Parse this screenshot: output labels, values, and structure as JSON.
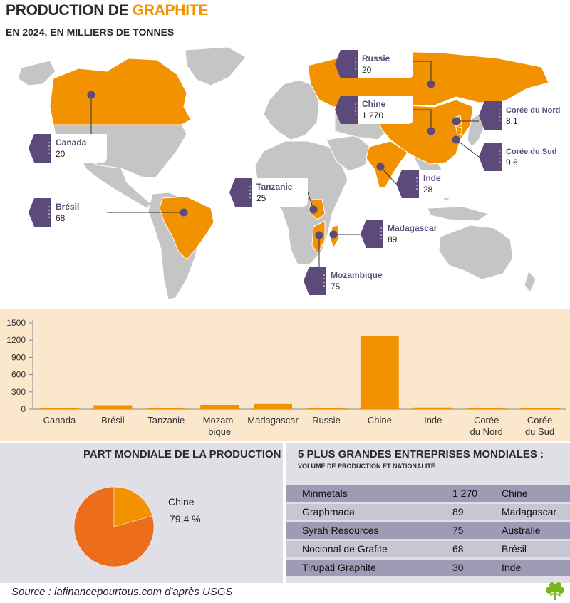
{
  "header": {
    "title_part1": "PRODUCTION DE ",
    "title_part2": "GRAPHITE",
    "subtitle": "EN 2024, EN MILLIERS DE TONNES"
  },
  "colors": {
    "accent": "#f39200",
    "highlight_country": "#f39200",
    "land": "#c5c5c5",
    "callout": "#5b4a7a",
    "bar_panel": "#fbe7cc",
    "pie_main": "#ec6e1d",
    "pie_other": "#f39200"
  },
  "map_callouts": [
    {
      "country": "Russie",
      "value": "20"
    },
    {
      "country": "Chine",
      "value": "1 270"
    },
    {
      "country": "Corée du Nord",
      "value": "8,1"
    },
    {
      "country": "Corée du Sud",
      "value": "9,6"
    },
    {
      "country": "Canada",
      "value": "20"
    },
    {
      "country": "Inde",
      "value": "28"
    },
    {
      "country": "Tanzanie",
      "value": "25"
    },
    {
      "country": "Brésil",
      "value": "68"
    },
    {
      "country": "Madagascar",
      "value": "89"
    },
    {
      "country": "Mozambique",
      "value": "75"
    }
  ],
  "chart_data": [
    {
      "type": "bar",
      "categories": [
        "Canada",
        "Brésil",
        "Tanzanie",
        "Mozam-bique",
        "Madagascar",
        "Russie",
        "Chine",
        "Inde",
        "Corée du Nord",
        "Corée du Sud"
      ],
      "category_lines": [
        [
          "Canada"
        ],
        [
          "Brésil"
        ],
        [
          "Tanzanie"
        ],
        [
          "Mozam-",
          "bique"
        ],
        [
          "Madagascar"
        ],
        [
          "Russie"
        ],
        [
          "Chine"
        ],
        [
          "Inde"
        ],
        [
          "Corée",
          "du Nord"
        ],
        [
          "Corée",
          "du Sud"
        ]
      ],
      "values": [
        20,
        68,
        25,
        75,
        89,
        20,
        1270,
        28,
        8.1,
        9.6
      ],
      "ylim": [
        0,
        1500
      ],
      "yticks": [
        0,
        300,
        600,
        900,
        1200,
        1500
      ],
      "title": "",
      "xlabel": "",
      "ylabel": "",
      "grid": false
    },
    {
      "type": "pie",
      "title": "PART MONDIALE DE LA PRODUCTION",
      "slices": [
        {
          "label": "Chine",
          "value": 79.4
        },
        {
          "label": "",
          "value": 20.6
        }
      ],
      "label_text": "Chine",
      "value_text": "79,4 %"
    }
  ],
  "enterprises": {
    "title": "5 PLUS GRANDES ENTREPRISES MONDIALES :",
    "subtitle": "VOLUME DE PRODUCTION ET NATIONALITÉ",
    "rows": [
      {
        "name": "Minmetals",
        "volume": "1 270",
        "country": "Chine"
      },
      {
        "name": "Graphmada",
        "volume": "89",
        "country": "Madagascar"
      },
      {
        "name": "Syrah Resources",
        "volume": "75",
        "country": "Australie"
      },
      {
        "name": "Nocional de Grafite",
        "volume": "68",
        "country": "Brésil"
      },
      {
        "name": "Tirupati Graphite",
        "volume": "30",
        "country": "Inde"
      }
    ]
  },
  "footer": {
    "source": "Source : lafinancepourtous.com d'après USGS"
  }
}
